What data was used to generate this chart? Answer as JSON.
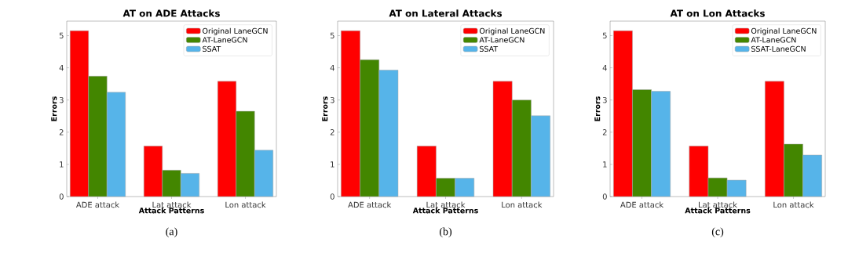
{
  "chart_data": [
    {
      "type": "bar",
      "title": "AT on ADE Attacks",
      "xlabel": "Attack Patterns",
      "ylabel": "Errors",
      "categories": [
        "ADE attack",
        "Lat attack",
        "Lon attack"
      ],
      "series": [
        {
          "name": "Original LaneGCN",
          "color": "#ff0000",
          "values": [
            5.15,
            1.57,
            3.58
          ]
        },
        {
          "name": "AT-LaneGCN",
          "color": "#438600",
          "values": [
            3.74,
            0.82,
            2.65
          ]
        },
        {
          "name": "SSAT",
          "color": "#56b4e9",
          "values": [
            3.24,
            0.72,
            1.44
          ]
        }
      ],
      "ylim": [
        0,
        5.45
      ],
      "yticks": [
        0,
        1,
        2,
        3,
        4,
        5
      ],
      "legend": "top right",
      "grid": false,
      "annotations": [
        "(a)"
      ]
    },
    {
      "type": "bar",
      "title": "AT on Lateral Attacks",
      "xlabel": "Attack Patterns",
      "ylabel": "Errors",
      "categories": [
        "ADE attack",
        "Lat attack",
        "Lon attack"
      ],
      "series": [
        {
          "name": "Original LaneGCN",
          "color": "#ff0000",
          "values": [
            5.15,
            1.57,
            3.58
          ]
        },
        {
          "name": "AT-LaneGCN",
          "color": "#438600",
          "values": [
            4.25,
            0.57,
            3.0
          ]
        },
        {
          "name": "SSAT",
          "color": "#56b4e9",
          "values": [
            3.93,
            0.57,
            2.51
          ]
        }
      ],
      "ylim": [
        0,
        5.45
      ],
      "yticks": [
        0,
        1,
        2,
        3,
        4,
        5
      ],
      "legend": "top right",
      "grid": false,
      "annotations": [
        "(b)"
      ]
    },
    {
      "type": "bar",
      "title": "AT on Lon Attacks",
      "xlabel": "Attack Patterns",
      "ylabel": "Errors",
      "categories": [
        "ADE attack",
        "Lat attack",
        "Lon attack"
      ],
      "series": [
        {
          "name": "Original LaneGCN",
          "color": "#ff0000",
          "values": [
            5.15,
            1.57,
            3.58
          ]
        },
        {
          "name": "AT-LaneGCN",
          "color": "#438600",
          "values": [
            3.32,
            0.58,
            1.63
          ]
        },
        {
          "name": "SSAT-LaneGCN",
          "color": "#56b4e9",
          "values": [
            3.27,
            0.51,
            1.29
          ]
        }
      ],
      "ylim": [
        0,
        5.45
      ],
      "yticks": [
        0,
        1,
        2,
        3,
        4,
        5
      ],
      "legend": "top right",
      "grid": false,
      "annotations": [
        "(c)"
      ]
    }
  ]
}
